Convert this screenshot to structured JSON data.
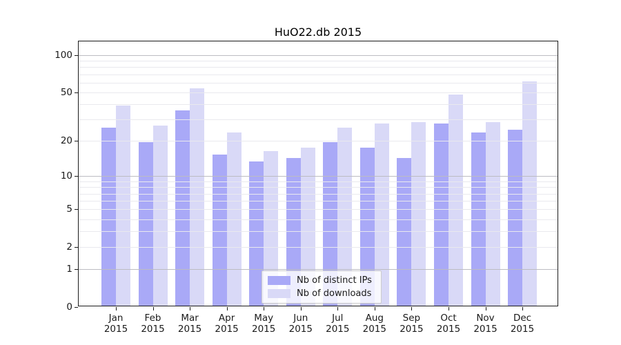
{
  "figure": {
    "title": "HuO22.db 2015"
  },
  "chart_data": {
    "type": "bar",
    "title": "HuO22.db 2015",
    "scale": "log1p",
    "ylim": [
      0,
      129
    ],
    "grid": true,
    "legend_position": "lower center",
    "months": [
      "Jan",
      "Feb",
      "Mar",
      "Apr",
      "May",
      "Jun",
      "Jul",
      "Aug",
      "Sep",
      "Oct",
      "Nov",
      "Dec"
    ],
    "year_label": "2015",
    "y_tick_labels": [
      100,
      50,
      20,
      10,
      5,
      2,
      1,
      0
    ],
    "gridlines_major": [
      1,
      10,
      100
    ],
    "gridlines_minor": [
      2,
      3,
      4,
      5,
      6,
      7,
      8,
      9,
      20,
      30,
      40,
      50,
      60,
      70,
      80,
      90
    ],
    "series": [
      {
        "name": "Nb of distinct IPs",
        "color": "#a9a9f7",
        "values": [
          25,
          19,
          35,
          15,
          13,
          14,
          19,
          17,
          14,
          27,
          23,
          24
        ]
      },
      {
        "name": "Nb of downloads",
        "color": "#d9d9f7",
        "values": [
          38,
          26,
          53,
          23,
          16,
          17,
          25,
          27,
          28,
          47,
          28,
          60
        ]
      }
    ]
  }
}
